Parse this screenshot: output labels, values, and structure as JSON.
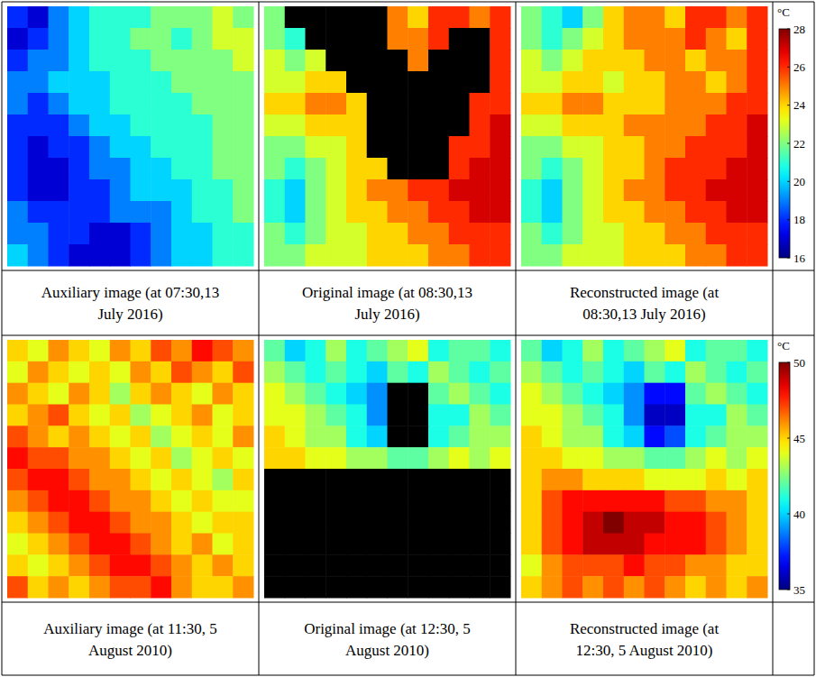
{
  "chart_data": [
    {
      "type": "heatmap",
      "colorbar_label": "°C",
      "colorbar_range": [
        16,
        28
      ],
      "colorbar_ticks": [
        16,
        18,
        20,
        22,
        24,
        26,
        28
      ],
      "panels": [
        {
          "caption": "Auxiliary image (at 07:30,13 July 2016)",
          "cells": [
            [
              18,
              17,
              19,
              20,
              21,
              21,
              21,
              22,
              22,
              22,
              23,
              22
            ],
            [
              17,
              18,
              19,
              20,
              21,
              21,
              22,
              22,
              21,
              22,
              23,
              23
            ],
            [
              18,
              19,
              19,
              20,
              21,
              21,
              21,
              22,
              22,
              22,
              22,
              23
            ],
            [
              19,
              19,
              20,
              20,
              20,
              21,
              21,
              21,
              22,
              22,
              22,
              22
            ],
            [
              19,
              18,
              19,
              20,
              20,
              21,
              21,
              21,
              21,
              22,
              22,
              22
            ],
            [
              18,
              18,
              18,
              19,
              20,
              20,
              21,
              21,
              21,
              21,
              22,
              22
            ],
            [
              18,
              17,
              18,
              18,
              19,
              20,
              20,
              21,
              21,
              21,
              22,
              22
            ],
            [
              18,
              17,
              17,
              18,
              19,
              19,
              20,
              20,
              21,
              21,
              22,
              22
            ],
            [
              18,
              17,
              17,
              18,
              18,
              19,
              20,
              20,
              20,
              21,
              21,
              22
            ],
            [
              19,
              18,
              18,
              18,
              18,
              19,
              19,
              19,
              20,
              21,
              21,
              22
            ],
            [
              19,
              19,
              18,
              18,
              17,
              17,
              18,
              19,
              20,
              20,
              21,
              21
            ],
            [
              20,
              19,
              18,
              17,
              17,
              17,
              18,
              19,
              20,
              20,
              21,
              21
            ]
          ]
        },
        {
          "caption": "Original image (at 08:30,13 July 2016)",
          "cells": [
            [
              22,
              null,
              null,
              null,
              null,
              null,
              25,
              24,
              26,
              26,
              25,
              26
            ],
            [
              22,
              21,
              null,
              null,
              null,
              null,
              25,
              25,
              26,
              null,
              null,
              26
            ],
            [
              23,
              22,
              23,
              null,
              null,
              null,
              null,
              25,
              null,
              null,
              null,
              26
            ],
            [
              23,
              23,
              24,
              24,
              null,
              null,
              null,
              null,
              null,
              null,
              null,
              26
            ],
            [
              24,
              24,
              25,
              25,
              24,
              null,
              null,
              null,
              null,
              null,
              26,
              26
            ],
            [
              23,
              23,
              24,
              24,
              24,
              null,
              null,
              null,
              null,
              null,
              26,
              27
            ],
            [
              22,
              22,
              23,
              23,
              24,
              null,
              null,
              null,
              null,
              26,
              26,
              27
            ],
            [
              22,
              21,
              22,
              23,
              24,
              24,
              null,
              null,
              null,
              26,
              27,
              27
            ],
            [
              21,
              20,
              22,
              23,
              24,
              25,
              25,
              26,
              26,
              27,
              27,
              27
            ],
            [
              21,
              20,
              22,
              23,
              24,
              24,
              25,
              25,
              26,
              26,
              27,
              27
            ],
            [
              22,
              21,
              22,
              23,
              23,
              24,
              24,
              25,
              25,
              26,
              26,
              26
            ],
            [
              22,
              22,
              23,
              23,
              23,
              24,
              24,
              24,
              25,
              25,
              26,
              26
            ]
          ]
        },
        {
          "caption": "Reconstructed image (at 08:30,13 July 2016)",
          "cells": [
            [
              22,
              21,
              20,
              22,
              24,
              25,
              25,
              24,
              26,
              26,
              25,
              26
            ],
            [
              22,
              21,
              22,
              23,
              24,
              25,
              25,
              25,
              26,
              25,
              24,
              26
            ],
            [
              23,
              22,
              23,
              24,
              24,
              24,
              25,
              25,
              24,
              25,
              25,
              26
            ],
            [
              23,
              23,
              24,
              24,
              23,
              24,
              24,
              25,
              25,
              24,
              25,
              26
            ],
            [
              24,
              24,
              25,
              25,
              24,
              24,
              24,
              25,
              25,
              25,
              26,
              26
            ],
            [
              23,
              23,
              24,
              24,
              24,
              25,
              25,
              25,
              25,
              26,
              26,
              27
            ],
            [
              22,
              22,
              23,
              23,
              24,
              24,
              25,
              25,
              26,
              26,
              26,
              27
            ],
            [
              22,
              21,
              22,
              23,
              24,
              24,
              25,
              26,
              26,
              26,
              27,
              27
            ],
            [
              21,
              20,
              22,
              23,
              24,
              25,
              25,
              26,
              26,
              27,
              27,
              27
            ],
            [
              21,
              20,
              22,
              23,
              24,
              24,
              25,
              25,
              26,
              26,
              27,
              27
            ],
            [
              22,
              21,
              22,
              23,
              23,
              24,
              24,
              25,
              25,
              26,
              26,
              26
            ],
            [
              22,
              22,
              23,
              23,
              23,
              24,
              24,
              24,
              25,
              25,
              26,
              26
            ]
          ]
        }
      ]
    },
    {
      "type": "heatmap",
      "colorbar_label": "°C",
      "colorbar_range": [
        35,
        50
      ],
      "colorbar_ticks": [
        35,
        40,
        45,
        50
      ],
      "panels": [
        {
          "caption": "Auxiliary image (at 11:30, 5 August 2010)",
          "cells": [
            [
              45,
              44,
              46,
              45,
              44,
              46,
              45,
              47,
              46,
              48,
              47,
              46
            ],
            [
              44,
              46,
              45,
              44,
              45,
              44,
              46,
              45,
              47,
              46,
              45,
              47
            ],
            [
              46,
              45,
              44,
              46,
              45,
              43,
              45,
              46,
              45,
              44,
              46,
              45
            ],
            [
              45,
              46,
              47,
              45,
              44,
              45,
              43,
              44,
              45,
              46,
              44,
              45
            ],
            [
              47,
              46,
              45,
              46,
              45,
              44,
              45,
              43,
              44,
              45,
              44,
              46
            ],
            [
              48,
              47,
              47,
              46,
              46,
              45,
              44,
              45,
              43,
              44,
              45,
              44
            ],
            [
              47,
              48,
              48,
              47,
              46,
              46,
              45,
              44,
              45,
              44,
              43,
              45
            ],
            [
              46,
              47,
              48,
              48,
              47,
              46,
              46,
              45,
              44,
              45,
              44,
              44
            ],
            [
              45,
              46,
              47,
              48,
              48,
              47,
              46,
              46,
              45,
              44,
              45,
              45
            ],
            [
              44,
              45,
              46,
              47,
              48,
              48,
              47,
              46,
              45,
              46,
              44,
              45
            ],
            [
              45,
              44,
              45,
              46,
              47,
              48,
              48,
              47,
              46,
              45,
              46,
              45
            ],
            [
              47,
              45,
              46,
              45,
              46,
              47,
              47,
              48,
              46,
              45,
              45,
              46
            ]
          ]
        },
        {
          "caption": "Original image (at 12:30, 5 August 2010)",
          "cells": [
            [
              42,
              40,
              41,
              43,
              41,
              42,
              43,
              44,
              41,
              42,
              42,
              41
            ],
            [
              43,
              42,
              41,
              42,
              41,
              40,
              42,
              41,
              43,
              42,
              41,
              42
            ],
            [
              44,
              43,
              42,
              41,
              40,
              39,
              null,
              null,
              42,
              43,
              42,
              41
            ],
            [
              44,
              44,
              43,
              42,
              41,
              39,
              null,
              null,
              41,
              41,
              43,
              42
            ],
            [
              45,
              44,
              43,
              43,
              41,
              40,
              null,
              null,
              41,
              42,
              43,
              43
            ],
            [
              45,
              45,
              44,
              44,
              43,
              43,
              42,
              42,
              43,
              44,
              43,
              44
            ],
            [
              null,
              null,
              null,
              null,
              null,
              null,
              null,
              null,
              null,
              null,
              null,
              null
            ],
            [
              null,
              null,
              null,
              null,
              null,
              null,
              null,
              null,
              null,
              null,
              null,
              null
            ],
            [
              null,
              null,
              null,
              null,
              null,
              null,
              null,
              null,
              null,
              null,
              null,
              null
            ],
            [
              null,
              null,
              null,
              null,
              null,
              null,
              null,
              null,
              null,
              null,
              null,
              null
            ],
            [
              null,
              null,
              null,
              null,
              null,
              null,
              null,
              null,
              null,
              null,
              null,
              null
            ],
            [
              null,
              null,
              null,
              null,
              null,
              null,
              null,
              null,
              null,
              null,
              null,
              null
            ]
          ]
        },
        {
          "caption": "Reconstructed image (at 12:30, 5 August 2010)",
          "cells": [
            [
              42,
              40,
              41,
              43,
              41,
              42,
              43,
              44,
              41,
              42,
              42,
              41
            ],
            [
              43,
              42,
              41,
              42,
              41,
              40,
              42,
              41,
              43,
              42,
              41,
              42
            ],
            [
              44,
              43,
              42,
              41,
              40,
              39,
              37,
              37,
              42,
              43,
              42,
              41
            ],
            [
              44,
              44,
              43,
              42,
              41,
              39,
              36,
              36,
              41,
              41,
              43,
              42
            ],
            [
              45,
              44,
              43,
              43,
              41,
              40,
              37,
              38,
              41,
              42,
              43,
              43
            ],
            [
              45,
              45,
              44,
              44,
              43,
              43,
              42,
              42,
              43,
              44,
              43,
              44
            ],
            [
              45,
              46,
              46,
              45,
              45,
              45,
              44,
              44,
              44,
              45,
              44,
              45
            ],
            [
              45,
              47,
              48,
              48,
              48,
              48,
              48,
              47,
              47,
              46,
              46,
              45
            ],
            [
              45,
              47,
              48,
              49,
              50,
              49,
              49,
              48,
              48,
              47,
              46,
              45
            ],
            [
              45,
              47,
              48,
              49,
              49,
              49,
              48,
              48,
              48,
              47,
              46,
              45
            ],
            [
              44,
              46,
              47,
              47,
              47,
              48,
              47,
              47,
              46,
              46,
              45,
              45
            ],
            [
              45,
              46,
              47,
              46,
              47,
              46,
              47,
              46,
              45,
              46,
              45,
              46
            ]
          ]
        }
      ]
    }
  ]
}
